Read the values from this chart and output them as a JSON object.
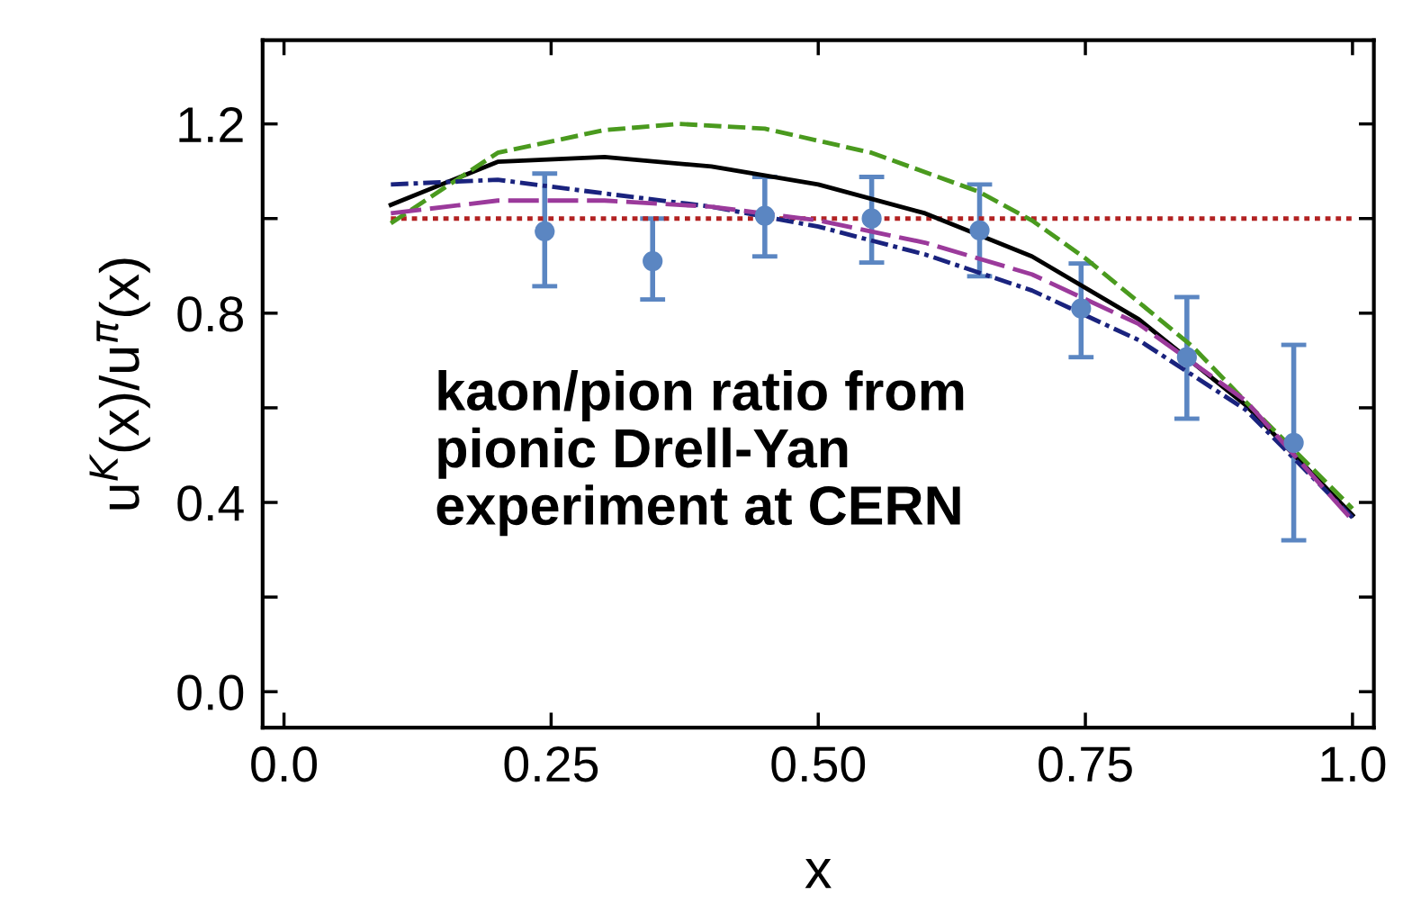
{
  "chart_data": {
    "type": "line",
    "xlabel": "x",
    "ylabel": "u$^{K}$(x)/u$^{π}$(x)",
    "annotations": [
      "kaon/pion ratio from\npionic Drell-Yan\nexperiment at CERN"
    ],
    "xlim": [
      -0.02,
      1.02
    ],
    "ylim": [
      -0.076,
      1.377
    ],
    "xticks": [
      {
        "value": 0.0,
        "label": "0.0"
      },
      0.25,
      {
        "value": 0.5,
        "label": "0.50"
      },
      0.75,
      {
        "value": 1.0,
        "label": "1.0"
      }
    ],
    "yticks": [
      {
        "value": 0.0,
        "label": "0.0"
      },
      0.4,
      0.8,
      1.2
    ],
    "grid": false,
    "legend": false,
    "series": [
      {
        "line_style": "dotted",
        "color": "#b22222",
        "x": [
          0.1,
          1.0
        ],
        "values": [
          1.0,
          1.0
        ]
      },
      {
        "line_style": "solid",
        "color": "#000000",
        "x": [
          0.1,
          0.2,
          0.3,
          0.4,
          0.5,
          0.6,
          0.7,
          0.8,
          0.9,
          1.0
        ],
        "values": [
          1.029,
          1.12,
          1.13,
          1.11,
          1.072,
          1.011,
          0.92,
          0.787,
          0.606,
          0.373
        ]
      },
      {
        "line_style": "dashed",
        "color": "#4a9a1e",
        "x": [
          0.1,
          0.2,
          0.3,
          0.37,
          0.45,
          0.55,
          0.65,
          0.7,
          0.75,
          0.85,
          0.9,
          1.0
        ],
        "values": [
          0.99,
          1.139,
          1.187,
          1.2,
          1.19,
          1.139,
          1.057,
          0.996,
          0.916,
          0.73,
          0.613,
          0.387
        ]
      },
      {
        "line_style": "dashdot",
        "color": "#1a237e",
        "x": [
          0.1,
          0.2,
          0.3,
          0.4,
          0.5,
          0.6,
          0.7,
          0.8,
          0.9,
          1.0
        ],
        "values": [
          1.072,
          1.082,
          1.053,
          1.025,
          0.983,
          0.924,
          0.848,
          0.743,
          0.596,
          0.368
        ]
      },
      {
        "line_style": "longdash",
        "color": "#9b3a9b",
        "x": [
          0.1,
          0.2,
          0.3,
          0.4,
          0.5,
          0.6,
          0.7,
          0.8,
          0.9,
          1.0
        ],
        "values": [
          1.011,
          1.038,
          1.038,
          1.025,
          0.996,
          0.949,
          0.882,
          0.777,
          0.615,
          0.362
        ]
      },
      {
        "type": "scatter",
        "marker": "circle",
        "color": "#5b86c2",
        "x": [
          0.244,
          0.345,
          0.45,
          0.55,
          0.651,
          0.746,
          0.845,
          0.945
        ],
        "values": [
          0.973,
          0.91,
          1.006,
          1.0,
          0.975,
          0.81,
          0.707,
          0.526
        ],
        "errors": [
          [
            0.857,
            1.095
          ],
          [
            0.829,
            1.0
          ],
          [
            0.92,
            1.088
          ],
          [
            0.907,
            1.088
          ],
          [
            0.878,
            1.072
          ],
          [
            0.707,
            0.905
          ],
          [
            0.577,
            0.834
          ],
          [
            0.32,
            0.733
          ]
        ]
      }
    ]
  }
}
